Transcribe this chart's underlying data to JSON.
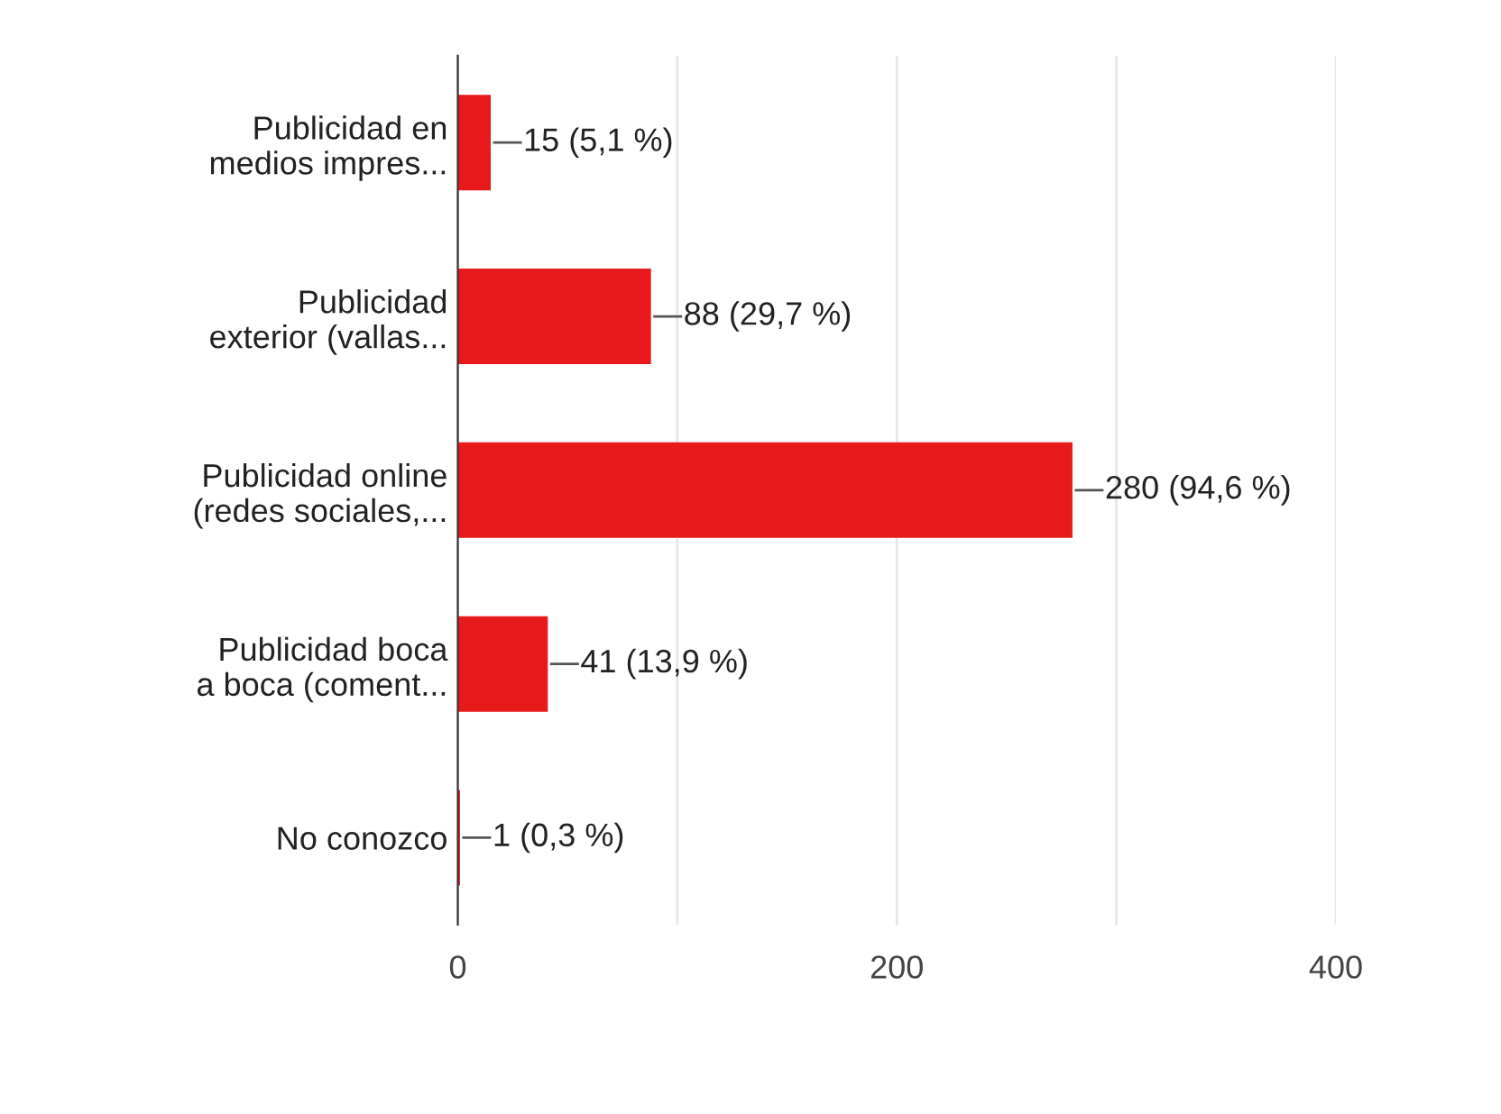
{
  "chart_data": {
    "type": "bar",
    "orientation": "horizontal",
    "categories": [
      "Publicidad en\nmedios impres...",
      "Publicidad\nexterior (vallas...",
      "Publicidad online\n(redes sociales,...",
      "Publicidad boca\na boca (coment...",
      "No conozco"
    ],
    "values": [
      15,
      88,
      280,
      41,
      1
    ],
    "value_labels": [
      "15 (5,1 %)",
      "88 (29,7 %)",
      "280 (94,6 %)",
      "41 (13,9 %)",
      "1 (0,3 %)"
    ],
    "color": "#e8191b",
    "xlim": [
      0,
      400
    ],
    "xticks": [
      0,
      {
        "value": 100,
        "label": null
      },
      200,
      {
        "value": 300,
        "label": null
      },
      400
    ],
    "grid": "x",
    "legend": false
  }
}
